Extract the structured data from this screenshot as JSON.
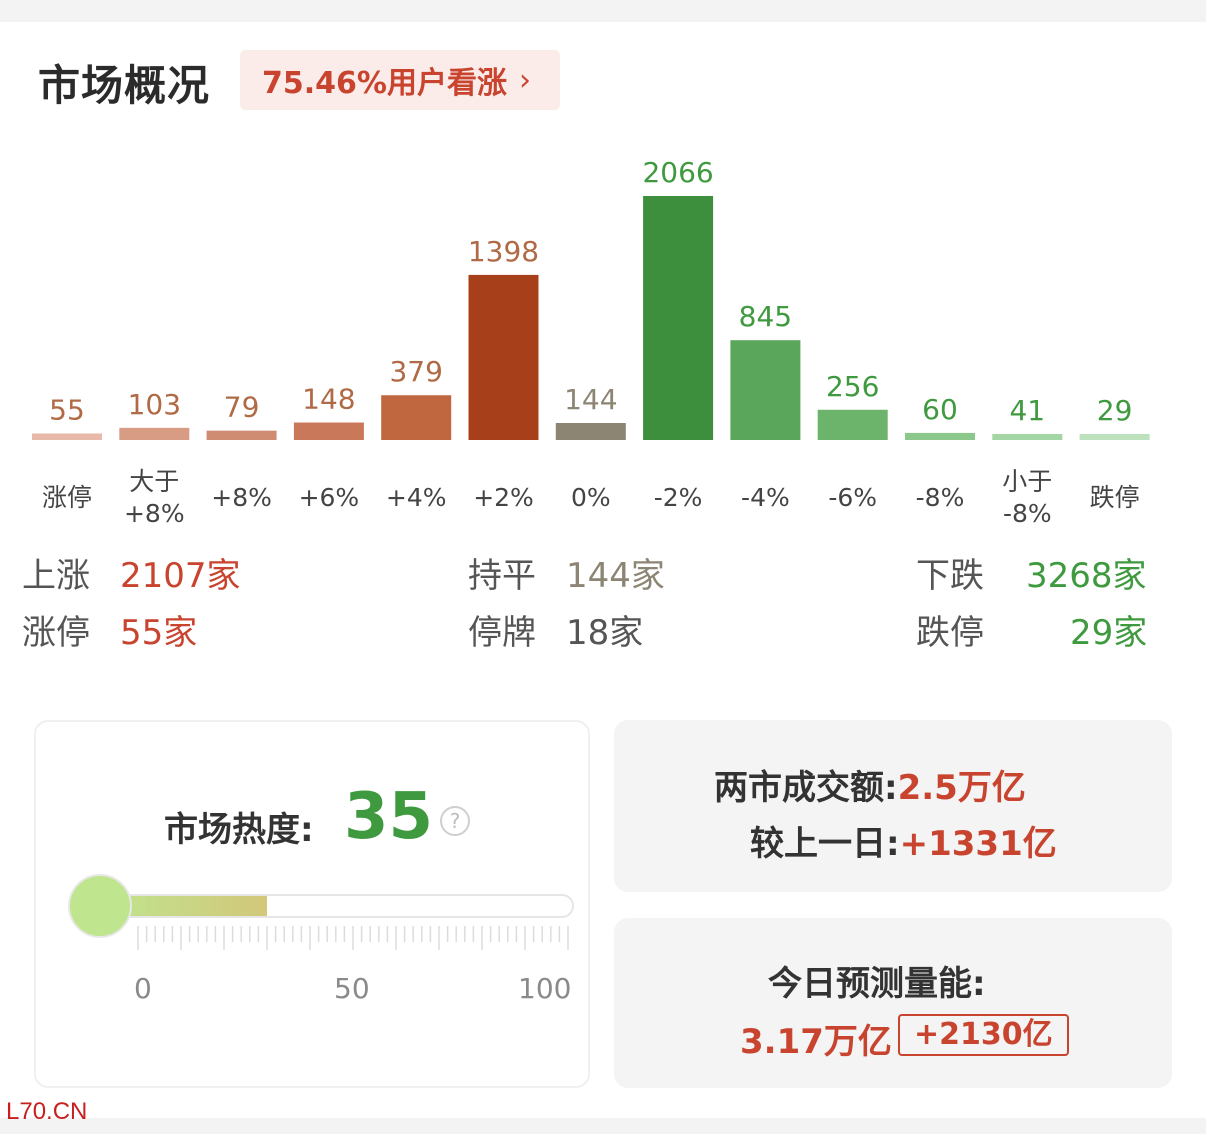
{
  "header": {
    "title": "市场概况",
    "sentiment_text": "75.46%用户看涨",
    "sentiment_chevron": "›"
  },
  "chart_data": {
    "type": "bar",
    "categories": [
      "涨停",
      "大于\n+8%",
      "+8%",
      "+6%",
      "+4%",
      "+2%",
      "0%",
      "-2%",
      "-4%",
      "-6%",
      "-8%",
      "小于\n-8%",
      "跌停"
    ],
    "values": [
      55,
      103,
      79,
      148,
      379,
      1398,
      144,
      2066,
      845,
      256,
      60,
      41,
      29
    ],
    "value_labels": [
      "55",
      "103",
      "79",
      "148",
      "379",
      "1398",
      "144",
      "2066",
      "845",
      "256",
      "60",
      "41",
      "29"
    ],
    "colors": [
      "#e8b9a8",
      "#d79c83",
      "#cf8c73",
      "#c9785a",
      "#c0673f",
      "#a83f1b",
      "#8c8573",
      "#3d8f3d",
      "#5aa65a",
      "#6cb36c",
      "#8cc88c",
      "#a4d5a4",
      "#bde0bd"
    ],
    "label_colors": [
      "#b06a45",
      "#b06a45",
      "#b06a45",
      "#b06a45",
      "#b06a45",
      "#b06a45",
      "#8c8573",
      "#3f9a3f",
      "#3f9a3f",
      "#3f9a3f",
      "#3f9a3f",
      "#3f9a3f",
      "#3f9a3f"
    ],
    "title": "",
    "xlabel": "",
    "ylabel": "",
    "ylim": [
      0,
      2066
    ],
    "grid": false
  },
  "summary": {
    "rise_label": "上涨",
    "rise_value": "2107家",
    "flat_label": "持平",
    "flat_value": "144家",
    "fall_label": "下跌",
    "fall_value": "3268家",
    "limit_up_label": "涨停",
    "limit_up_value": "55家",
    "suspended_label": "停牌",
    "suspended_value": "18家",
    "limit_down_label": "跌停",
    "limit_down_value": "29家"
  },
  "heat": {
    "label": "市场热度:",
    "value": "35",
    "help_icon": "?",
    "level": 35,
    "scale_min": "0",
    "scale_mid": "50",
    "scale_max": "100",
    "fill_color": "#bfe58f",
    "value_color": "#3f9a3f"
  },
  "turnover": {
    "label": "两市成交额:",
    "value": "2.5万亿",
    "compare_label": "较上一日:",
    "compare_value": "+1331亿"
  },
  "forecast": {
    "label": "今日预测量能:",
    "value": "3.17万亿",
    "delta": "+2130亿"
  },
  "watermark": "L70.CN",
  "colors": {
    "up": "#c8442e",
    "down": "#3f9a3f",
    "flat": "#8c8573"
  }
}
